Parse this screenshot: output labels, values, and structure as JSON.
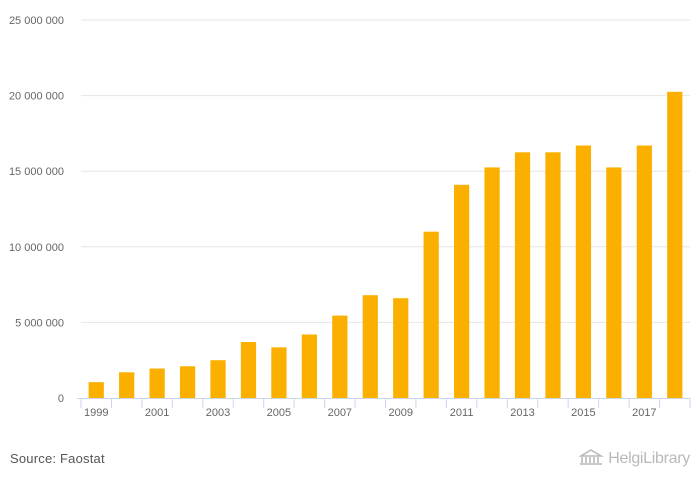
{
  "chart_data": {
    "type": "bar",
    "title": "",
    "xlabel": "",
    "ylabel": "",
    "categories": [
      "1999",
      "2000",
      "2001",
      "2002",
      "2003",
      "2004",
      "2005",
      "2006",
      "2007",
      "2008",
      "2009",
      "2010",
      "2011",
      "2012",
      "2013",
      "2014",
      "2015",
      "2016",
      "2017",
      "2018"
    ],
    "values": [
      1050000,
      1700000,
      1950000,
      2100000,
      2500000,
      3700000,
      3350000,
      4200000,
      5450000,
      6800000,
      6600000,
      11000000,
      14100000,
      15250000,
      16250000,
      16250000,
      16700000,
      15250000,
      16700000,
      20250000
    ],
    "x_tick_labels": [
      "1999",
      "",
      "2001",
      "",
      "2003",
      "",
      "2005",
      "",
      "2007",
      "",
      "2009",
      "",
      "2011",
      "",
      "2013",
      "",
      "2015",
      "",
      "2017",
      ""
    ],
    "ylim": [
      0,
      25000000
    ],
    "y_ticks": [
      0,
      5000000,
      10000000,
      15000000,
      20000000,
      25000000
    ],
    "y_tick_labels": [
      "0",
      "5 000 000",
      "10 000 000",
      "15 000 000",
      "20 000 000",
      "25 000 000"
    ],
    "grid": true,
    "bar_color": "#FBB000",
    "grid_color": "#e6e6e6"
  },
  "footer": {
    "source": "Source: Faostat",
    "brand": "HelgiLibrary"
  }
}
